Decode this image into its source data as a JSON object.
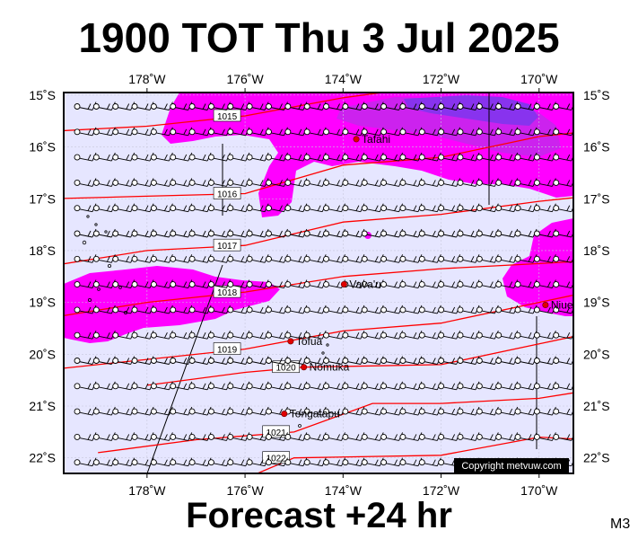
{
  "title": "1900 TOT Thu 3 Jul 2025",
  "footer": "Forecast +24 hr",
  "model": "M3",
  "copyright": "Copyright metvuw.com",
  "lon_labels": [
    "178˚W",
    "176˚W",
    "174˚W",
    "172˚W",
    "170˚W"
  ],
  "lat_labels": [
    "15˚S",
    "16˚S",
    "17˚S",
    "18˚S",
    "19˚S",
    "20˚S",
    "21˚S",
    "22˚S"
  ],
  "places": [
    {
      "name": "Tafahi",
      "lon": -173.73,
      "lat": -15.85
    },
    {
      "name": "Vava'u",
      "lon": -173.98,
      "lat": -18.65
    },
    {
      "name": "Niue",
      "lon": -169.87,
      "lat": -19.05
    },
    {
      "name": "Tofua",
      "lon": -175.07,
      "lat": -19.75
    },
    {
      "name": "Nomuka",
      "lon": -174.8,
      "lat": -20.25
    },
    {
      "name": "Tongatapu",
      "lon": -175.2,
      "lat": -21.15
    }
  ],
  "isobars": [
    {
      "label": "1015",
      "points": [
        [
          -180,
          -15.7
        ],
        [
          -178,
          -15.6
        ],
        [
          -176,
          -15.4
        ],
        [
          -174,
          -15.05
        ],
        [
          -172,
          -14.8
        ]
      ]
    },
    {
      "label": "1016",
      "points": [
        [
          -180,
          -17.0
        ],
        [
          -178,
          -16.95
        ],
        [
          -176,
          -16.9
        ],
        [
          -174,
          -16.35
        ],
        [
          -172,
          -16.2
        ],
        [
          -170,
          -15.8
        ],
        [
          -169,
          -15.7
        ]
      ]
    },
    {
      "label": "1017",
      "points": [
        [
          -180,
          -18.3
        ],
        [
          -178,
          -18.0
        ],
        [
          -176,
          -17.9
        ],
        [
          -174,
          -17.45
        ],
        [
          -172,
          -17.3
        ],
        [
          -170,
          -17.05
        ],
        [
          -169,
          -16.95
        ]
      ]
    },
    {
      "label": "1018",
      "points": [
        [
          -180,
          -19.3
        ],
        [
          -178,
          -19.0
        ],
        [
          -176,
          -18.8
        ],
        [
          -174,
          -18.5
        ],
        [
          -172,
          -18.35
        ],
        [
          -170,
          -18.25
        ],
        [
          -169,
          -18.2
        ]
      ]
    },
    {
      "label": "1019",
      "points": [
        [
          -180,
          -20.3
        ],
        [
          -178,
          -20.1
        ],
        [
          -176,
          -19.9
        ],
        [
          -174,
          -19.55
        ],
        [
          -172,
          -19.4
        ],
        [
          -170,
          -19.0
        ],
        [
          -169,
          -18.8
        ]
      ]
    },
    {
      "label": "1020",
      "points": [
        [
          -178,
          -20.6
        ],
        [
          -176,
          -20.35
        ],
        [
          -174.8,
          -20.25
        ],
        [
          -172,
          -20.2
        ],
        [
          -170,
          -19.8
        ],
        [
          -169,
          -19.6
        ]
      ]
    },
    {
      "label": "1021",
      "points": [
        [
          -179,
          -21.9
        ],
        [
          -177,
          -21.65
        ],
        [
          -175,
          -21.5
        ],
        [
          -173.4,
          -20.95
        ],
        [
          -172,
          -20.95
        ],
        [
          -170,
          -20.85
        ],
        [
          -169,
          -20.7
        ]
      ]
    },
    {
      "label": "1022",
      "points": [
        [
          -178,
          -22.7
        ],
        [
          -176,
          -22.4
        ],
        [
          -175,
          -22.0
        ],
        [
          -172,
          -21.95
        ],
        [
          -170,
          -21.6
        ],
        [
          -169,
          -21.65
        ]
      ]
    }
  ],
  "precip_colors": {
    "light": "#ff00ff",
    "medium": "#cc22ee",
    "heavy": "#8833ee",
    "background": "#e6e6ff"
  }
}
